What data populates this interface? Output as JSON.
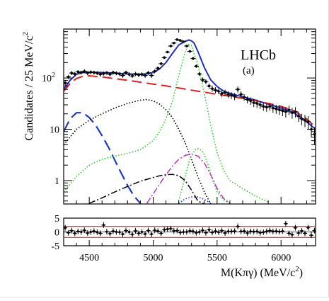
{
  "chart_data": {
    "type": "line",
    "logo": "LHCb",
    "panel_label": "(a)",
    "xlabel": "M(Kπγ) (MeV/c²)",
    "ylabel": "Candidates / 25 MeV/c²",
    "xlim": [
      4300,
      6270
    ],
    "ylim": [
      0.35,
      900
    ],
    "y_scale": "log",
    "x_ticks": [
      4500,
      5000,
      5500,
      6000
    ],
    "x_tick_labels": [
      "4500",
      "5000",
      "5500",
      "6000"
    ],
    "y_ticks": [
      1,
      10,
      100
    ],
    "y_tick_labels": [
      "1",
      "10",
      "10²"
    ],
    "series": [
      {
        "style": "data-points",
        "color": "#000000",
        "x": [
          4312,
          4337,
          4362,
          4387,
          4412,
          4437,
          4462,
          4487,
          4512,
          4537,
          4562,
          4587,
          4612,
          4637,
          4662,
          4687,
          4712,
          4737,
          4762,
          4787,
          4812,
          4837,
          4862,
          4887,
          4912,
          4937,
          4962,
          4987,
          5012,
          5037,
          5062,
          5087,
          5112,
          5137,
          5162,
          5187,
          5212,
          5237,
          5262,
          5287,
          5312,
          5337,
          5362,
          5387,
          5412,
          5437,
          5462,
          5487,
          5512,
          5537,
          5562,
          5587,
          5612,
          5637,
          5662,
          5687,
          5712,
          5737,
          5762,
          5787,
          5812,
          5837,
          5862,
          5887,
          5912,
          5937,
          5962,
          5987,
          6012,
          6037,
          6062,
          6087,
          6112,
          6137,
          6162,
          6187,
          6212,
          6237,
          6262
        ],
        "y": [
          80,
          105,
          125,
          120,
          132,
          128,
          135,
          125,
          130,
          128,
          125,
          118,
          122,
          126,
          118,
          128,
          124,
          120,
          112,
          128,
          118,
          110,
          120,
          115,
          118,
          112,
          126,
          112,
          135,
          155,
          190,
          250,
          320,
          420,
          480,
          560,
          540,
          510,
          420,
          330,
          240,
          170,
          120,
          92,
          85,
          70,
          62,
          58,
          55,
          50,
          52,
          48,
          46,
          44,
          60,
          48,
          42,
          38,
          36,
          33,
          32,
          30,
          28,
          27,
          28,
          26,
          25,
          24,
          23,
          22,
          24,
          21,
          22,
          18,
          16,
          15,
          14,
          10,
          8
        ],
        "err": [
          9,
          10,
          11,
          11,
          11,
          11,
          12,
          11,
          11,
          11,
          11,
          11,
          11,
          11,
          11,
          11,
          11,
          11,
          11,
          11,
          11,
          10,
          11,
          11,
          11,
          11,
          11,
          11,
          12,
          12,
          14,
          16,
          18,
          20,
          22,
          24,
          23,
          23,
          20,
          18,
          16,
          13,
          11,
          10,
          9,
          8,
          8,
          8,
          7,
          7,
          7,
          7,
          7,
          7,
          8,
          7,
          6,
          6,
          6,
          6,
          6,
          5,
          5,
          5,
          5,
          5,
          5,
          5,
          5,
          5,
          5,
          5,
          5,
          4,
          4,
          4,
          4,
          3,
          3
        ]
      },
      {
        "style": "solid",
        "color": "#2030c0",
        "x": [
          4300,
          4350,
          4400,
          4450,
          4500,
          4600,
          4700,
          4800,
          4900,
          4950,
          5000,
          5050,
          5100,
          5150,
          5200,
          5250,
          5280,
          5300,
          5320,
          5350,
          5400,
          5450,
          5500,
          5550,
          5600,
          5700,
          5800,
          5900,
          6000,
          6100,
          6200,
          6270
        ],
        "y": [
          60,
          90,
          118,
          128,
          130,
          128,
          124,
          120,
          118,
          120,
          128,
          150,
          200,
          300,
          440,
          520,
          550,
          530,
          480,
          330,
          160,
          92,
          68,
          56,
          50,
          43,
          37,
          31,
          26,
          21,
          14,
          10
        ]
      },
      {
        "style": "long-dash",
        "color": "#e02020",
        "x": [
          4300,
          4350,
          4400,
          4450,
          4500,
          4600,
          4700,
          4800,
          4900,
          5000,
          5100,
          5200,
          5300,
          5400,
          5500,
          5600,
          5700,
          5800,
          5900,
          6000,
          6100,
          6200,
          6270
        ],
        "y": [
          55,
          78,
          98,
          108,
          110,
          105,
          97,
          90,
          83,
          76,
          70,
          64,
          58,
          53,
          48,
          44,
          40,
          36,
          32,
          28,
          23,
          16,
          11
        ]
      },
      {
        "style": "dash",
        "color": "#1a3cc8",
        "x": [
          4300,
          4350,
          4400,
          4450,
          4500,
          4550,
          4600,
          4650,
          4700,
          4750,
          4800,
          4850,
          4900
        ],
        "y": [
          9,
          16,
          21,
          21,
          17,
          12,
          7.5,
          4.5,
          2.5,
          1.4,
          0.8,
          0.5,
          0.36
        ]
      },
      {
        "style": "dotted",
        "color": "#000000",
        "x": [
          4300,
          4400,
          4500,
          4600,
          4700,
          4800,
          4900,
          4950,
          5000,
          5050,
          5100,
          5150,
          5200,
          5250,
          5300,
          5350,
          5400,
          5450
        ],
        "y": [
          5,
          10,
          15,
          20,
          26,
          32,
          37,
          38,
          36,
          31,
          24,
          17,
          10,
          5.5,
          2.6,
          1.2,
          0.6,
          0.35
        ]
      },
      {
        "style": "dotted",
        "color": "#20d020",
        "x": [
          4300,
          4400,
          4500,
          4600,
          4700,
          4800,
          4900,
          5000,
          5050,
          5100,
          5150,
          5200,
          5250,
          5275,
          5300,
          5350,
          5400,
          5450,
          5500,
          5550,
          5600,
          5700,
          5800,
          5900
        ],
        "y": [
          0.6,
          1.2,
          2,
          2.6,
          3,
          3.4,
          4,
          6,
          9,
          16,
          35,
          110,
          320,
          450,
          430,
          180,
          50,
          12,
          3.5,
          1.6,
          1,
          0.7,
          0.5,
          0.38
        ]
      },
      {
        "style": "dotted",
        "color": "#20d020",
        "x": [
          5200,
          5250,
          5280,
          5300,
          5330,
          5350,
          5380,
          5400,
          5430,
          5460,
          5500,
          5550,
          5600
        ],
        "y": [
          0.4,
          1.2,
          2.3,
          3.1,
          4,
          4.2,
          3.9,
          3.2,
          2,
          1.1,
          0.6,
          0.42,
          0.36
        ]
      },
      {
        "style": "dash-dot",
        "color": "#c030c0",
        "x": [
          4950,
          5000,
          5050,
          5100,
          5150,
          5200,
          5250,
          5300,
          5350,
          5400,
          5450,
          5500,
          5550,
          5600
        ],
        "y": [
          0.36,
          0.55,
          0.85,
          1.3,
          1.9,
          2.6,
          3.1,
          3.3,
          3.0,
          2.2,
          1.3,
          0.7,
          0.45,
          0.36
        ]
      },
      {
        "style": "dash-dot",
        "color": "#000000",
        "x": [
          4500,
          4600,
          4700,
          4800,
          4900,
          5000,
          5050,
          5100,
          5150,
          5200,
          5250,
          5300,
          5350,
          5400
        ],
        "y": [
          0.36,
          0.46,
          0.6,
          0.77,
          0.97,
          1.15,
          1.24,
          1.3,
          1.32,
          1.25,
          1.0,
          0.65,
          0.4,
          0.35
        ]
      },
      {
        "style": "dotted",
        "color": "#1a3cc8",
        "x": [
          5200,
          5250,
          5300,
          5350,
          5400,
          5450
        ],
        "y": [
          0.36,
          0.44,
          0.48,
          0.48,
          0.43,
          0.36
        ]
      }
    ],
    "residuals": {
      "ylim": [
        -5,
        5
      ],
      "y_ticks": [
        5,
        0,
        -5
      ],
      "y_tick_labels": [
        "5",
        "0",
        "-5"
      ],
      "bands": [
        -2,
        2
      ],
      "x": [
        4312,
        4337,
        4362,
        4387,
        4412,
        4437,
        4462,
        4487,
        4512,
        4537,
        4562,
        4587,
        4612,
        4637,
        4662,
        4687,
        4712,
        4737,
        4762,
        4787,
        4812,
        4837,
        4862,
        4887,
        4912,
        4937,
        4962,
        4987,
        5012,
        5037,
        5062,
        5087,
        5112,
        5137,
        5162,
        5187,
        5212,
        5237,
        5262,
        5287,
        5312,
        5337,
        5362,
        5387,
        5412,
        5437,
        5462,
        5487,
        5512,
        5537,
        5562,
        5587,
        5612,
        5637,
        5662,
        5687,
        5712,
        5737,
        5762,
        5787,
        5812,
        5837,
        5862,
        5887,
        5912,
        5937,
        5962,
        5987,
        6012,
        6037,
        6062,
        6087,
        6112,
        6137,
        6162,
        6187,
        6212,
        6237,
        6262
      ],
      "values": [
        1.5,
        -0.3,
        0.5,
        -0.5,
        0.2,
        0,
        0.6,
        -0.4,
        0,
        0.3,
        -0.1,
        -0.5,
        2.5,
        0.1,
        -0.6,
        0.3,
        0,
        -0.1,
        -0.8,
        0.5,
        0,
        -0.9,
        0.4,
        -0.5,
        0,
        -0.7,
        0.5,
        -0.8,
        0.6,
        0.3,
        -0.5,
        0.8,
        1,
        1.2,
        0.4,
        0.5,
        -0.2,
        0,
        0,
        0.4,
        0.2,
        -0.3,
        0,
        0.6,
        -0.3,
        0.8,
        -0.2,
        0.3,
        -0.1,
        0.5,
        -0.4,
        0.2,
        0.2,
        0.3,
        2,
        0.2,
        0.3,
        -0.4,
        0.2,
        0.1,
        0.2,
        -0.3,
        -0.1,
        0.2,
        0.5,
        0.2,
        0.3,
        0.1,
        0.3,
        3,
        -0.5,
        -1,
        1.5,
        -0.4,
        0.4,
        -0.5,
        1.5,
        -1.2,
        0.5
      ]
    }
  }
}
